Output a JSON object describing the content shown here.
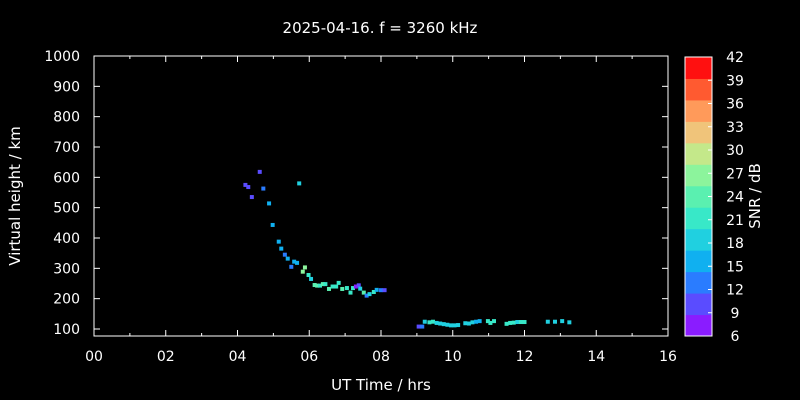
{
  "chart_data": {
    "type": "scatter",
    "title": "2025-04-16. f = 3260 kHz",
    "xlabel": "UT Time / hrs",
    "ylabel": "Virtual height / km",
    "xlim": [
      0,
      16
    ],
    "ylim": [
      80,
      1000
    ],
    "xticks": [
      "00",
      "02",
      "04",
      "06",
      "08",
      "10",
      "12",
      "14",
      "16"
    ],
    "yticks": [
      "100",
      "200",
      "300",
      "400",
      "500",
      "600",
      "700",
      "800",
      "900",
      "1000"
    ],
    "grid": false,
    "colorbar": {
      "label": "SNR / dB",
      "range": [
        6,
        42
      ],
      "ticks": [
        "6",
        "9",
        "12",
        "15",
        "18",
        "21",
        "24",
        "27",
        "30",
        "33",
        "36",
        "39",
        "42"
      ],
      "colors": [
        "#8a1cff",
        "#5a4cff",
        "#2a7cff",
        "#10b0f0",
        "#20d0e0",
        "#38e8c8",
        "#5af0b0",
        "#8cf49c",
        "#c4e88a",
        "#f0c47a",
        "#ff9a5a",
        "#ff5a30",
        "#ff1010"
      ]
    },
    "points": [
      {
        "x": 4.22,
        "y": 575,
        "snr": 10
      },
      {
        "x": 4.3,
        "y": 568,
        "snr": 10
      },
      {
        "x": 4.4,
        "y": 535,
        "snr": 11
      },
      {
        "x": 4.62,
        "y": 618,
        "snr": 10
      },
      {
        "x": 4.72,
        "y": 563,
        "snr": 12
      },
      {
        "x": 4.88,
        "y": 514,
        "snr": 15
      },
      {
        "x": 4.98,
        "y": 443,
        "snr": 15
      },
      {
        "x": 5.15,
        "y": 388,
        "snr": 16
      },
      {
        "x": 5.22,
        "y": 365,
        "snr": 15
      },
      {
        "x": 5.32,
        "y": 345,
        "snr": 14
      },
      {
        "x": 5.4,
        "y": 332,
        "snr": 15
      },
      {
        "x": 5.5,
        "y": 305,
        "snr": 14
      },
      {
        "x": 5.58,
        "y": 322,
        "snr": 17
      },
      {
        "x": 5.66,
        "y": 318,
        "snr": 16
      },
      {
        "x": 5.72,
        "y": 580,
        "snr": 18
      },
      {
        "x": 5.82,
        "y": 289,
        "snr": 27
      },
      {
        "x": 5.88,
        "y": 303,
        "snr": 26
      },
      {
        "x": 5.98,
        "y": 278,
        "snr": 22
      },
      {
        "x": 6.05,
        "y": 265,
        "snr": 18
      },
      {
        "x": 6.15,
        "y": 245,
        "snr": 24
      },
      {
        "x": 6.22,
        "y": 243,
        "snr": 23
      },
      {
        "x": 6.3,
        "y": 243,
        "snr": 21
      },
      {
        "x": 6.38,
        "y": 248,
        "snr": 24
      },
      {
        "x": 6.45,
        "y": 248,
        "snr": 22
      },
      {
        "x": 6.55,
        "y": 232,
        "snr": 23
      },
      {
        "x": 6.65,
        "y": 240,
        "snr": 21
      },
      {
        "x": 6.75,
        "y": 240,
        "snr": 21
      },
      {
        "x": 6.82,
        "y": 252,
        "snr": 22
      },
      {
        "x": 6.92,
        "y": 232,
        "snr": 23
      },
      {
        "x": 7.05,
        "y": 235,
        "snr": 21
      },
      {
        "x": 7.15,
        "y": 220,
        "snr": 22
      },
      {
        "x": 7.22,
        "y": 235,
        "snr": 20
      },
      {
        "x": 7.3,
        "y": 240,
        "snr": 6
      },
      {
        "x": 7.38,
        "y": 244,
        "snr": 10
      },
      {
        "x": 7.42,
        "y": 233,
        "snr": 19
      },
      {
        "x": 7.52,
        "y": 220,
        "snr": 24
      },
      {
        "x": 7.6,
        "y": 210,
        "snr": 14
      },
      {
        "x": 7.68,
        "y": 215,
        "snr": 18
      },
      {
        "x": 7.8,
        "y": 222,
        "snr": 21
      },
      {
        "x": 7.88,
        "y": 229,
        "snr": 15
      },
      {
        "x": 8.0,
        "y": 228,
        "snr": 13
      },
      {
        "x": 8.1,
        "y": 228,
        "snr": 11
      },
      {
        "x": 9.05,
        "y": 108,
        "snr": 11
      },
      {
        "x": 9.15,
        "y": 108,
        "snr": 12
      },
      {
        "x": 9.22,
        "y": 124,
        "snr": 19
      },
      {
        "x": 9.35,
        "y": 122,
        "snr": 21
      },
      {
        "x": 9.45,
        "y": 124,
        "snr": 21
      },
      {
        "x": 9.55,
        "y": 120,
        "snr": 19
      },
      {
        "x": 9.65,
        "y": 118,
        "snr": 19
      },
      {
        "x": 9.75,
        "y": 116,
        "snr": 18
      },
      {
        "x": 9.85,
        "y": 114,
        "snr": 18
      },
      {
        "x": 9.95,
        "y": 112,
        "snr": 18
      },
      {
        "x": 10.05,
        "y": 112,
        "snr": 18
      },
      {
        "x": 10.15,
        "y": 113,
        "snr": 18
      },
      {
        "x": 10.35,
        "y": 119,
        "snr": 18
      },
      {
        "x": 10.45,
        "y": 118,
        "snr": 18
      },
      {
        "x": 10.55,
        "y": 122,
        "snr": 18
      },
      {
        "x": 10.65,
        "y": 124,
        "snr": 17
      },
      {
        "x": 10.75,
        "y": 126,
        "snr": 15
      },
      {
        "x": 10.98,
        "y": 126,
        "snr": 20
      },
      {
        "x": 11.05,
        "y": 120,
        "snr": 20
      },
      {
        "x": 11.15,
        "y": 126,
        "snr": 21
      },
      {
        "x": 11.5,
        "y": 117,
        "snr": 21
      },
      {
        "x": 11.6,
        "y": 120,
        "snr": 20
      },
      {
        "x": 11.7,
        "y": 121,
        "snr": 21
      },
      {
        "x": 11.8,
        "y": 123,
        "snr": 18
      },
      {
        "x": 11.9,
        "y": 123,
        "snr": 21
      },
      {
        "x": 12.0,
        "y": 123,
        "snr": 21
      },
      {
        "x": 12.65,
        "y": 124,
        "snr": 18
      },
      {
        "x": 12.85,
        "y": 124,
        "snr": 18
      },
      {
        "x": 13.05,
        "y": 126,
        "snr": 18
      },
      {
        "x": 13.25,
        "y": 122,
        "snr": 18
      }
    ]
  }
}
